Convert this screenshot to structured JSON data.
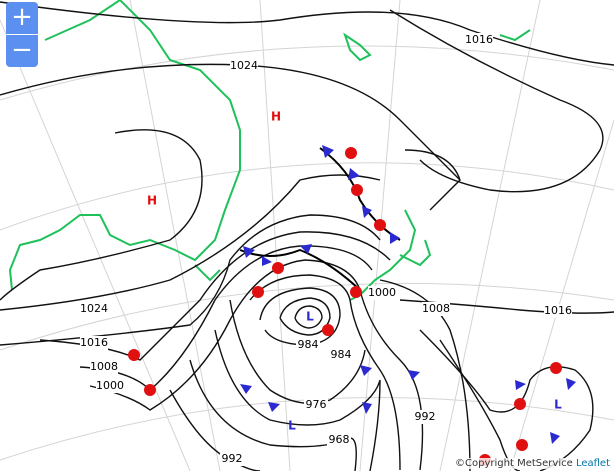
{
  "zoom_controls": {
    "zoom_in": "+",
    "zoom_out": "−"
  },
  "isobar_labels": [
    1016,
    1024,
    1024,
    1016,
    1008,
    1000,
    1000,
    1008,
    1016,
    984,
    984,
    976,
    968,
    992,
    992
  ],
  "pressure_systems": [
    "H",
    "H",
    "L",
    "L",
    "L"
  ],
  "attribution": {
    "copyright": "©Copyright MetService",
    "leaflet": "Leaflet"
  }
}
